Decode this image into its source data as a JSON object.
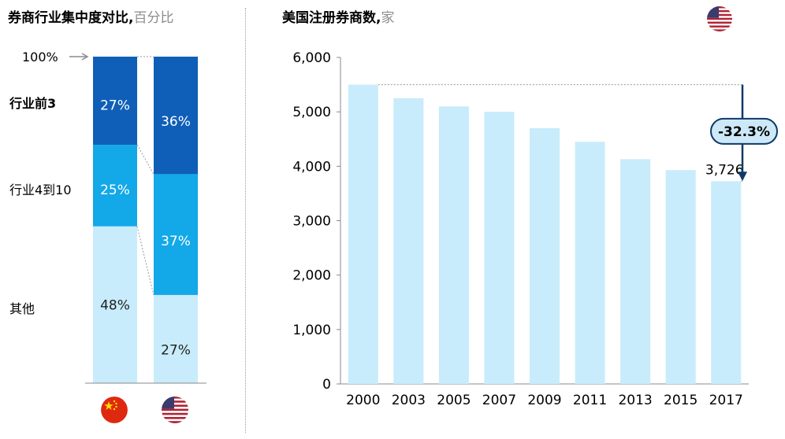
{
  "left_title": {
    "main": "券商行业集中度对比,",
    "unit": "百分比"
  },
  "right_title": {
    "main": "美国注册券商数,",
    "unit": "家"
  },
  "left_labels": {
    "top_marker": "100%",
    "top3": "行业前3",
    "rank4_10": "行业4到10",
    "others": "其他"
  },
  "icons": {
    "china_flag": "china-flag-icon",
    "us_flag": "us-flag-icon"
  },
  "colors": {
    "dark": "#0f5fb8",
    "mid": "#13a8e8",
    "light": "#c8ecfb",
    "arrow": "#0e3a66",
    "badge": "#cde9f8"
  },
  "chart_data": [
    {
      "type": "bar",
      "stacked": true,
      "categories": [
        "中国",
        "美国"
      ],
      "series": [
        {
          "name": "行业前3",
          "values": [
            27,
            36
          ]
        },
        {
          "name": "行业4到10",
          "values": [
            25,
            37
          ]
        },
        {
          "name": "其他",
          "values": [
            48,
            27
          ]
        }
      ],
      "ylim": [
        0,
        100
      ]
    },
    {
      "type": "bar",
      "categories": [
        "2000",
        "2003",
        "2005",
        "2007",
        "2009",
        "2011",
        "2013",
        "2015",
        "2017"
      ],
      "values": [
        5500,
        5250,
        5100,
        5000,
        4700,
        4450,
        4130,
        3930,
        3726
      ],
      "data_labels": {
        "2017": "3,726"
      },
      "yticks": [
        "0",
        "1,000",
        "2,000",
        "3,000",
        "4,000",
        "5,000",
        "6,000"
      ],
      "ylim": [
        0,
        6000
      ],
      "annotation": "-32.3%"
    }
  ]
}
